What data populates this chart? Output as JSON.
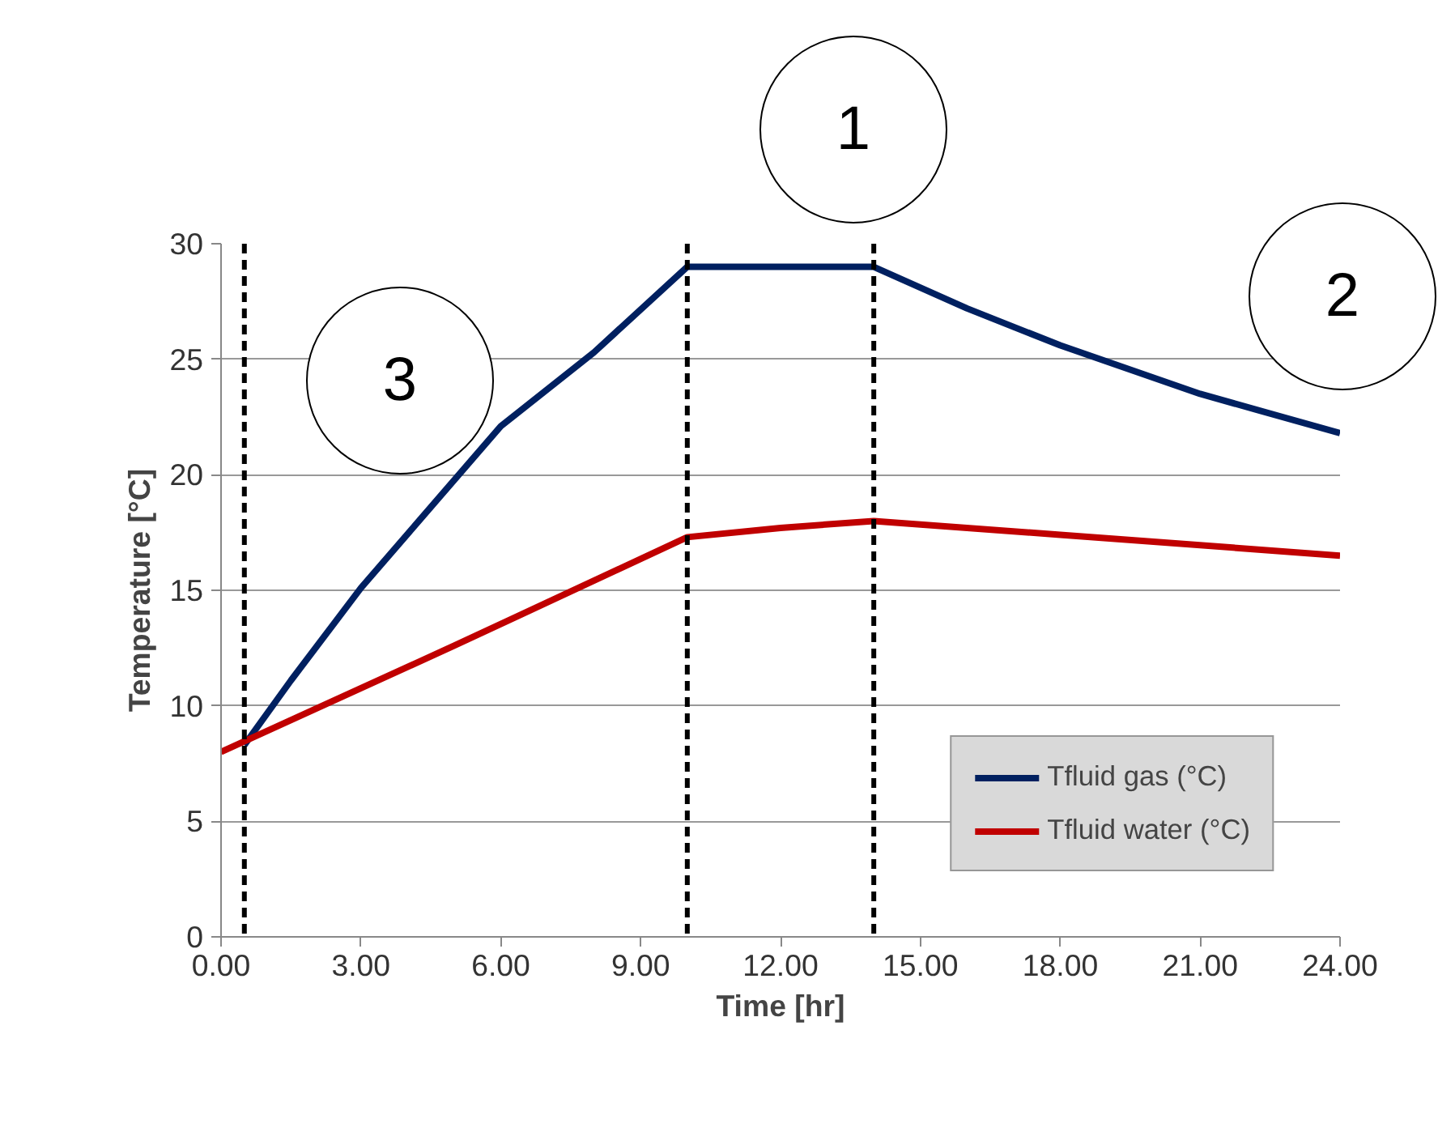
{
  "chart_data": {
    "type": "line",
    "xlabel": "Time [hr]",
    "ylabel": "Temperature [°C]",
    "xlim": [
      0,
      24
    ],
    "xticks": [
      {
        "value": 0,
        "label": "0.00"
      },
      {
        "value": 3,
        "label": "3.00"
      },
      {
        "value": 6,
        "label": "6.00"
      },
      {
        "value": 9,
        "label": "9.00"
      },
      {
        "value": 12,
        "label": "12.00"
      },
      {
        "value": 15,
        "label": "15.00"
      },
      {
        "value": 18,
        "label": "18.00"
      },
      {
        "value": 21,
        "label": "21.00"
      },
      {
        "value": 24,
        "label": "24.00"
      }
    ],
    "ylim": [
      0,
      30
    ],
    "yticks": [
      0,
      5,
      10,
      15,
      20,
      25,
      30
    ],
    "grid": "y",
    "legend": "bottom right",
    "line_style": "solid",
    "series": [
      {
        "name": "Tfluid gas (°C)",
        "color": "#002060",
        "x": [
          0.5,
          1.5,
          3,
          6,
          8,
          10,
          14,
          16,
          18,
          21,
          24
        ],
        "values": [
          8.3,
          11.1,
          15.1,
          22.1,
          25.3,
          29,
          29,
          27.2,
          25.6,
          23.5,
          21.8
        ]
      },
      {
        "name": "Tfluid water (°C)",
        "color": "#c00000",
        "x": [
          0,
          5,
          10,
          12,
          14,
          18,
          24
        ],
        "values": [
          8,
          12.6,
          17.3,
          17.7,
          18,
          17.4,
          16.5
        ]
      }
    ],
    "ref_lines": [
      {
        "axis": "x",
        "value": 0.5,
        "color": "#000000",
        "line_style": "dashed"
      },
      {
        "axis": "x",
        "value": 10,
        "color": "#000000",
        "line_style": "dashed"
      },
      {
        "axis": "x",
        "value": 14,
        "color": "#000000",
        "line_style": "dashed"
      }
    ],
    "annotations": [
      "1",
      "2",
      "3"
    ]
  }
}
